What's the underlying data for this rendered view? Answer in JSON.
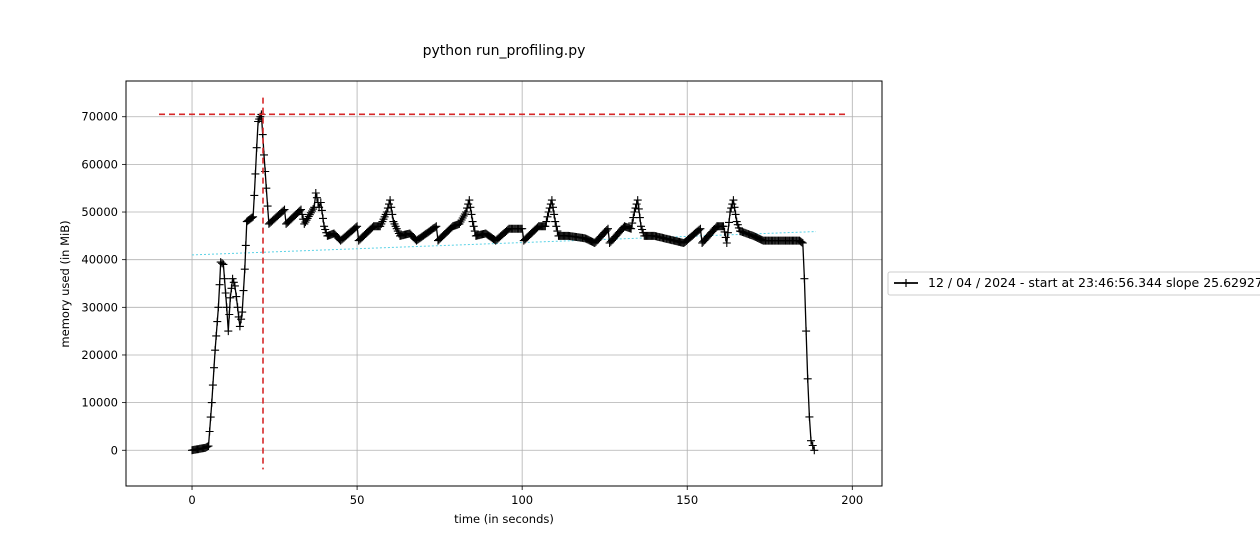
{
  "chart_data": {
    "type": "line",
    "title": "python run_profiling.py",
    "xlabel": "time (in seconds)",
    "ylabel": "memory used (in MiB)",
    "xlim": [
      -20,
      209
    ],
    "ylim": [
      -7500,
      77500
    ],
    "xticks": [
      0,
      50,
      100,
      150,
      200
    ],
    "yticks": [
      0,
      10000,
      20000,
      30000,
      40000,
      50000,
      60000,
      70000
    ],
    "grid": true,
    "legend_placement": "right, outside plot",
    "colors": {
      "series": "#000000",
      "peak_marker": "#d62728",
      "trend": "#5ad2e6",
      "grid": "#b0b0b0"
    },
    "series": [
      {
        "name": "12 / 04 / 2024 - start at 23:46:56.344 slope 25.62927",
        "marker": "+",
        "points": [
          [
            0.0,
            0
          ],
          [
            1.0,
            150
          ],
          [
            2.0,
            250
          ],
          [
            3.0,
            400
          ],
          [
            4.0,
            500
          ],
          [
            5.0,
            900
          ],
          [
            6.0,
            10000
          ],
          [
            7.0,
            21000
          ],
          [
            8.0,
            30000
          ],
          [
            8.7,
            39500
          ],
          [
            9.5,
            39000
          ],
          [
            10.5,
            30000
          ],
          [
            11.0,
            25000
          ],
          [
            11.6,
            32000
          ],
          [
            12.3,
            36000
          ],
          [
            13.0,
            34500
          ],
          [
            13.8,
            30000
          ],
          [
            14.5,
            26000
          ],
          [
            15.2,
            29000
          ],
          [
            16.0,
            38000
          ],
          [
            16.6,
            48000
          ],
          [
            17.5,
            48500
          ],
          [
            18.5,
            49000
          ],
          [
            19.2,
            58000
          ],
          [
            20.0,
            69000
          ],
          [
            21.0,
            70500
          ],
          [
            21.8,
            62000
          ],
          [
            22.5,
            55000
          ],
          [
            23.3,
            47500
          ],
          [
            28,
            50500
          ],
          [
            28.5,
            47500
          ],
          [
            33,
            50500
          ],
          [
            34,
            47500
          ],
          [
            37,
            51000
          ],
          [
            37.5,
            54000
          ],
          [
            38.5,
            51000
          ],
          [
            39,
            52000
          ],
          [
            40,
            47000
          ],
          [
            41,
            45000
          ],
          [
            43,
            45500
          ],
          [
            45,
            44000
          ],
          [
            50,
            47000
          ],
          [
            50.5,
            44000
          ],
          [
            55,
            47000
          ],
          [
            57,
            47000
          ],
          [
            59,
            50000
          ],
          [
            60,
            52500
          ],
          [
            61,
            48000
          ],
          [
            63,
            45000
          ],
          [
            66,
            45500
          ],
          [
            68,
            44000
          ],
          [
            74,
            47000
          ],
          [
            74.5,
            44000
          ],
          [
            79,
            47000
          ],
          [
            81,
            47500
          ],
          [
            83,
            50000
          ],
          [
            84,
            52500
          ],
          [
            85,
            48000
          ],
          [
            86,
            45000
          ],
          [
            89,
            45500
          ],
          [
            92,
            44000
          ],
          [
            96,
            46500
          ],
          [
            100,
            46500
          ],
          [
            100.5,
            44000
          ],
          [
            105,
            47000
          ],
          [
            107,
            47000
          ],
          [
            108,
            50000
          ],
          [
            109,
            52500
          ],
          [
            110,
            48000
          ],
          [
            111,
            45000
          ],
          [
            114,
            45000
          ],
          [
            119,
            44500
          ],
          [
            122,
            43500
          ],
          [
            126,
            46500
          ],
          [
            126.5,
            43500
          ],
          [
            131,
            47000
          ],
          [
            133,
            46500
          ],
          [
            134,
            50000
          ],
          [
            135,
            52500
          ],
          [
            136,
            47000
          ],
          [
            137,
            45000
          ],
          [
            140,
            45000
          ],
          [
            146,
            44000
          ],
          [
            149,
            43500
          ],
          [
            154,
            46500
          ],
          [
            154.5,
            43500
          ],
          [
            159,
            47000
          ],
          [
            161,
            47000
          ],
          [
            162,
            43500
          ],
          [
            163,
            50000
          ],
          [
            164,
            52500
          ],
          [
            165,
            48000
          ],
          [
            166,
            46000
          ],
          [
            170,
            45000
          ],
          [
            173,
            44000
          ],
          [
            178,
            44000
          ],
          [
            184,
            44000
          ],
          [
            185,
            43500
          ],
          [
            185.5,
            36000
          ],
          [
            186,
            25000
          ],
          [
            186.5,
            15000
          ],
          [
            187,
            7000
          ],
          [
            187.5,
            2000
          ],
          [
            188,
            1000
          ],
          [
            188.5,
            0
          ]
        ]
      }
    ],
    "peak": {
      "x": 21.5,
      "y": 70500
    },
    "trend_line": {
      "x": [
        0,
        189
      ],
      "y": [
        41000,
        45900
      ]
    }
  }
}
